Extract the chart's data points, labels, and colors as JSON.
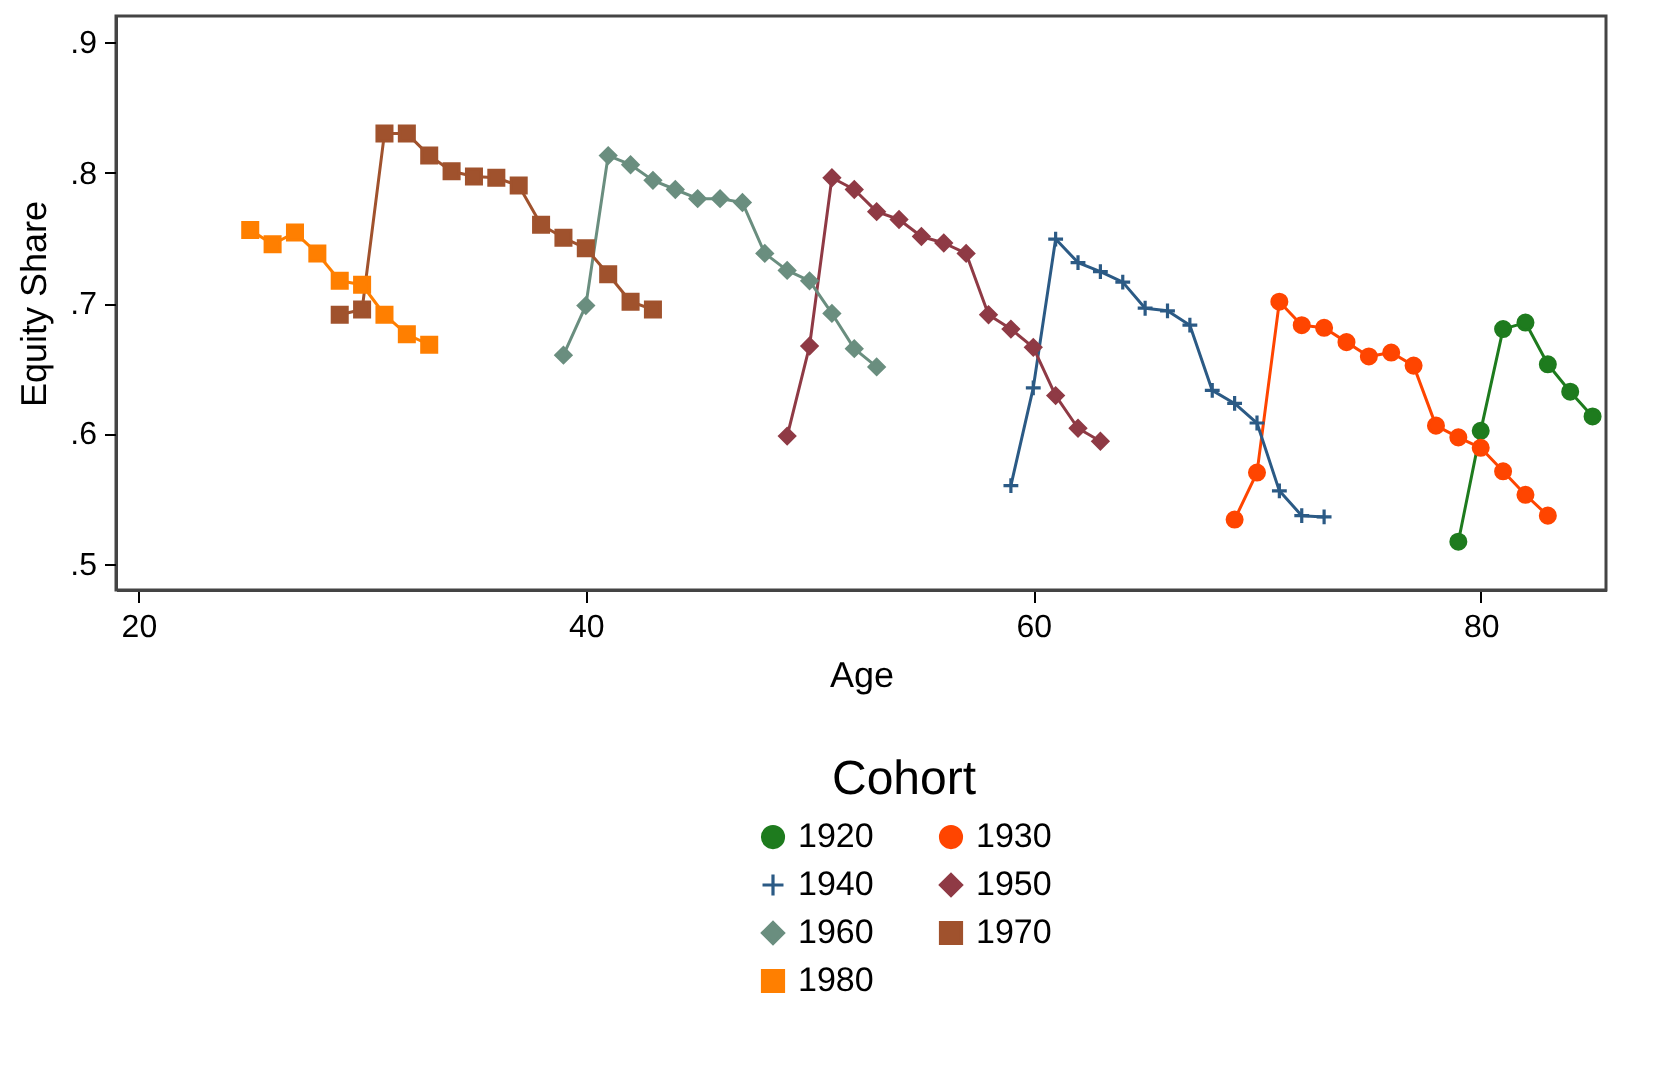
{
  "chart_data": {
    "type": "line",
    "xlabel": "Age",
    "ylabel": "Equity Share",
    "legend_title": "Cohort",
    "legend": "bottom",
    "grid": false,
    "xlim": [
      19,
      85.6
    ],
    "xticks": [
      20,
      40,
      60,
      80
    ],
    "ylim": [
      0.48,
      0.92
    ],
    "yticks": [
      {
        "value": 0.5,
        "label": ".5"
      },
      {
        "value": 0.6,
        "label": ".6"
      },
      {
        "value": 0.7,
        "label": ".7"
      },
      {
        "value": 0.8,
        "label": ".8"
      },
      {
        "value": 0.9,
        "label": ".9"
      }
    ],
    "line_style": "solid",
    "series": [
      {
        "name": "1920",
        "color": "#1e7b1e",
        "marker": "circle",
        "x": [
          79,
          80,
          81,
          82,
          83,
          84,
          85
        ],
        "values": [
          0.517,
          0.602,
          0.68,
          0.685,
          0.653,
          0.632,
          0.613
        ]
      },
      {
        "name": "1930",
        "color": "#ff4500",
        "marker": "circle",
        "x": [
          69,
          70,
          71,
          72,
          73,
          74,
          75,
          76,
          77,
          78,
          79,
          80,
          81,
          82,
          83
        ],
        "values": [
          0.534,
          0.57,
          0.701,
          0.683,
          0.681,
          0.67,
          0.659,
          0.662,
          0.652,
          0.606,
          0.597,
          0.589,
          0.571,
          0.553,
          0.537
        ]
      },
      {
        "name": "1940",
        "color": "#2b5a85",
        "marker": "cross",
        "x": [
          59,
          60,
          61,
          62,
          63,
          64,
          65,
          66,
          67,
          68,
          69,
          70,
          71,
          72,
          73
        ],
        "values": [
          0.56,
          0.635,
          0.749,
          0.731,
          0.724,
          0.716,
          0.696,
          0.694,
          0.683,
          0.633,
          0.623,
          0.608,
          0.556,
          0.537,
          0.536
        ]
      },
      {
        "name": "1950",
        "color": "#8f3a45",
        "marker": "diamond",
        "x": [
          49,
          50,
          51,
          52,
          53,
          54,
          55,
          56,
          57,
          58,
          59,
          60,
          61,
          62,
          63
        ],
        "values": [
          0.598,
          0.667,
          0.796,
          0.787,
          0.77,
          0.764,
          0.751,
          0.746,
          0.738,
          0.691,
          0.68,
          0.666,
          0.629,
          0.604,
          0.594
        ]
      },
      {
        "name": "1960",
        "color": "#6a8e7f",
        "marker": "diamond",
        "x": [
          39,
          40,
          41,
          42,
          43,
          44,
          45,
          46,
          47,
          48,
          49,
          50,
          51,
          52,
          53
        ],
        "values": [
          0.66,
          0.698,
          0.813,
          0.806,
          0.794,
          0.787,
          0.78,
          0.78,
          0.777,
          0.738,
          0.725,
          0.717,
          0.692,
          0.665,
          0.651
        ]
      },
      {
        "name": "1970",
        "color": "#a0522d",
        "marker": "square",
        "x": [
          29,
          30,
          31,
          32,
          33,
          34,
          35,
          36,
          37,
          38,
          39,
          40,
          41,
          42,
          43
        ],
        "values": [
          0.691,
          0.695,
          0.83,
          0.83,
          0.813,
          0.801,
          0.797,
          0.796,
          0.79,
          0.76,
          0.75,
          0.742,
          0.722,
          0.701,
          0.695
        ]
      },
      {
        "name": "1980",
        "color": "#ff7f00",
        "marker": "square",
        "x": [
          25,
          26,
          27,
          28,
          29,
          30,
          31,
          32,
          33
        ],
        "values": [
          0.756,
          0.745,
          0.754,
          0.738,
          0.717,
          0.714,
          0.691,
          0.676,
          0.668
        ]
      }
    ]
  }
}
